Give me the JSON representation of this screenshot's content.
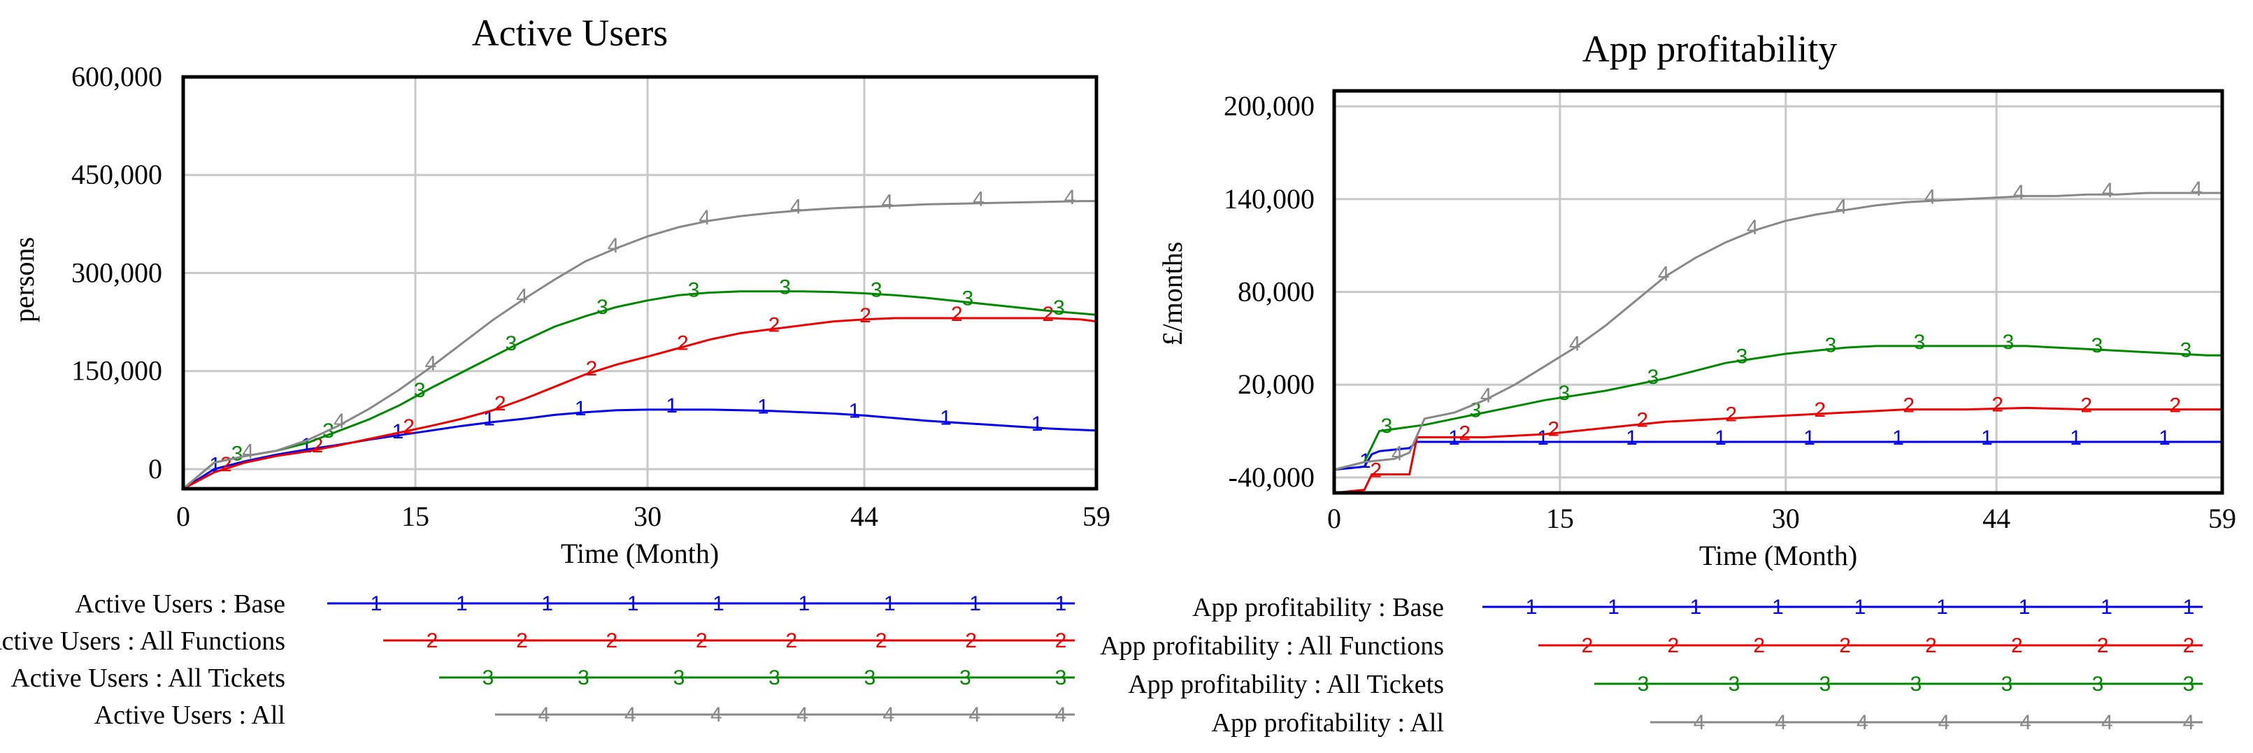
{
  "chart_data": [
    {
      "type": "line",
      "title": "Active Users",
      "xlabel": "Time (Month)",
      "ylabel": "persons",
      "xlim": [
        0,
        59
      ],
      "ylim": [
        -30000,
        600000
      ],
      "x_ticks": [
        0,
        15,
        30,
        44,
        59
      ],
      "x_tick_labels": [
        "0",
        "15",
        "30",
        "44",
        "59"
      ],
      "y_ticks": [
        0,
        150000,
        300000,
        450000,
        600000
      ],
      "y_tick_labels": [
        "0",
        "150,000",
        "300,000",
        "450,000",
        "600,000"
      ],
      "grid": true,
      "legend_position": "bottom",
      "series": [
        {
          "name": "Active Users : Base",
          "marker": "1",
          "color": "#0000ee",
          "x": [
            0,
            2,
            4,
            6,
            8,
            10,
            12,
            14,
            16,
            18,
            20,
            22,
            24,
            26,
            28,
            30,
            32,
            34,
            36,
            38,
            40,
            42,
            44,
            46,
            48,
            50,
            52,
            54,
            56,
            58,
            59
          ],
          "y": [
            -30000,
            0,
            12000,
            22000,
            30000,
            37000,
            45000,
            52000,
            59000,
            66000,
            72000,
            77000,
            83000,
            87000,
            90000,
            91000,
            91000,
            91000,
            90000,
            89000,
            87000,
            85000,
            82000,
            78000,
            74000,
            71000,
            68000,
            65000,
            62000,
            60000,
            59000
          ]
        },
        {
          "name": "Active Users : All Functions",
          "marker": "2",
          "color": "#ee0000",
          "x": [
            0,
            2,
            4,
            6,
            8,
            10,
            12,
            14,
            16,
            18,
            20,
            22,
            24,
            26,
            28,
            30,
            32,
            34,
            36,
            38,
            40,
            42,
            44,
            46,
            48,
            50,
            52,
            54,
            56,
            58,
            59
          ],
          "y": [
            -30000,
            -5000,
            10000,
            20000,
            27000,
            36000,
            46000,
            56000,
            66000,
            77000,
            90000,
            107000,
            126000,
            145000,
            160000,
            172000,
            185000,
            198000,
            208000,
            214000,
            220000,
            226000,
            229000,
            231000,
            231000,
            231000,
            231000,
            231000,
            231000,
            229000,
            226000
          ]
        },
        {
          "name": "Active Users : All Tickets",
          "marker": "3",
          "color": "#008800",
          "x": [
            0,
            2,
            4,
            6,
            8,
            10,
            12,
            14,
            16,
            18,
            20,
            22,
            24,
            26,
            28,
            30,
            32,
            34,
            36,
            38,
            40,
            42,
            44,
            46,
            48,
            50,
            52,
            54,
            56,
            58,
            59
          ],
          "y": [
            -30000,
            10000,
            20000,
            28000,
            40000,
            58000,
            76000,
            98000,
            124000,
            148000,
            172000,
            196000,
            218000,
            234000,
            248000,
            258000,
            266000,
            270000,
            272000,
            272000,
            272000,
            271000,
            269000,
            266000,
            262000,
            257000,
            252000,
            247000,
            242000,
            238000,
            236000
          ]
        },
        {
          "name": "Active Users : All",
          "marker": "4",
          "color": "#888888",
          "x": [
            0,
            2,
            4,
            6,
            8,
            10,
            12,
            14,
            16,
            18,
            20,
            22,
            24,
            26,
            28,
            30,
            32,
            34,
            36,
            38,
            40,
            42,
            44,
            46,
            48,
            50,
            52,
            54,
            56,
            58,
            59
          ],
          "y": [
            -30000,
            10000,
            20000,
            28000,
            44000,
            66000,
            92000,
            122000,
            156000,
            192000,
            228000,
            260000,
            290000,
            318000,
            338000,
            356000,
            370000,
            380000,
            387000,
            392000,
            396000,
            399000,
            401000,
            403000,
            405000,
            406000,
            407000,
            408000,
            409000,
            410000,
            410000
          ]
        }
      ]
    },
    {
      "type": "line",
      "title": "App profitability",
      "xlabel": "Time (Month)",
      "ylabel": "£/months",
      "xlim": [
        0,
        59
      ],
      "ylim": [
        -50000,
        210000
      ],
      "x_ticks": [
        0,
        15,
        30,
        44,
        59
      ],
      "x_tick_labels": [
        "0",
        "15",
        "30",
        "44",
        "59"
      ],
      "y_ticks": [
        -40000,
        20000,
        80000,
        140000,
        200000
      ],
      "y_tick_labels": [
        "-40,000",
        "20,000",
        "80,000",
        "140,000",
        "200,000"
      ],
      "grid": true,
      "legend_position": "bottom",
      "series": [
        {
          "name": "App profitability : Base",
          "marker": "1",
          "color": "#0000ee",
          "x": [
            0,
            1,
            2,
            2.5,
            3,
            4,
            5,
            5.5,
            6,
            10,
            20,
            30,
            40,
            50,
            59
          ],
          "y": [
            -35000,
            -34000,
            -33000,
            -25000,
            -23000,
            -22000,
            -21000,
            -17000,
            -17000,
            -17000,
            -17000,
            -17000,
            -17000,
            -17000,
            -17000
          ]
        },
        {
          "name": "App profitability : All Functions",
          "marker": "2",
          "color": "#ee0000",
          "x": [
            0,
            1,
            2,
            2.5,
            4,
            5,
            5.5,
            6,
            10,
            14,
            18,
            22,
            26,
            30,
            34,
            38,
            42,
            46,
            50,
            54,
            59
          ],
          "y": [
            -50000,
            -49000,
            -48000,
            -38000,
            -38000,
            -38000,
            -14000,
            -14000,
            -14000,
            -12000,
            -8000,
            -4000,
            -2000,
            0,
            2000,
            4000,
            4000,
            5000,
            4000,
            4000,
            4000
          ]
        },
        {
          "name": "App profitability : All Tickets",
          "marker": "3",
          "color": "#008800",
          "x": [
            0,
            2,
            3,
            6,
            8,
            10,
            12,
            14,
            16,
            18,
            20,
            22,
            24,
            26,
            28,
            30,
            32,
            34,
            36,
            38,
            40,
            42,
            44,
            46,
            48,
            50,
            52,
            54,
            56,
            58,
            59
          ],
          "y": [
            -35000,
            -30000,
            -10000,
            -6000,
            -2000,
            2000,
            6000,
            10000,
            13000,
            16000,
            20000,
            24000,
            29000,
            34000,
            37000,
            40000,
            42000,
            44000,
            45000,
            45000,
            45000,
            45000,
            45000,
            45000,
            44000,
            43000,
            42000,
            41000,
            40000,
            39000,
            39000
          ]
        },
        {
          "name": "App profitability : All",
          "marker": "4",
          "color": "#888888",
          "x": [
            0,
            2,
            4,
            5,
            6,
            8,
            10,
            12,
            14,
            16,
            18,
            20,
            22,
            24,
            26,
            28,
            30,
            32,
            34,
            36,
            38,
            40,
            42,
            44,
            46,
            48,
            50,
            52,
            54,
            56,
            58,
            59
          ],
          "y": [
            -35000,
            -30000,
            -28000,
            -24000,
            -2000,
            2000,
            10000,
            20000,
            32000,
            44000,
            58000,
            74000,
            90000,
            102000,
            112000,
            120000,
            126000,
            130000,
            133000,
            136000,
            138000,
            139000,
            140000,
            141000,
            142000,
            142000,
            143000,
            143000,
            144000,
            144000,
            144000,
            144000
          ]
        }
      ]
    }
  ]
}
